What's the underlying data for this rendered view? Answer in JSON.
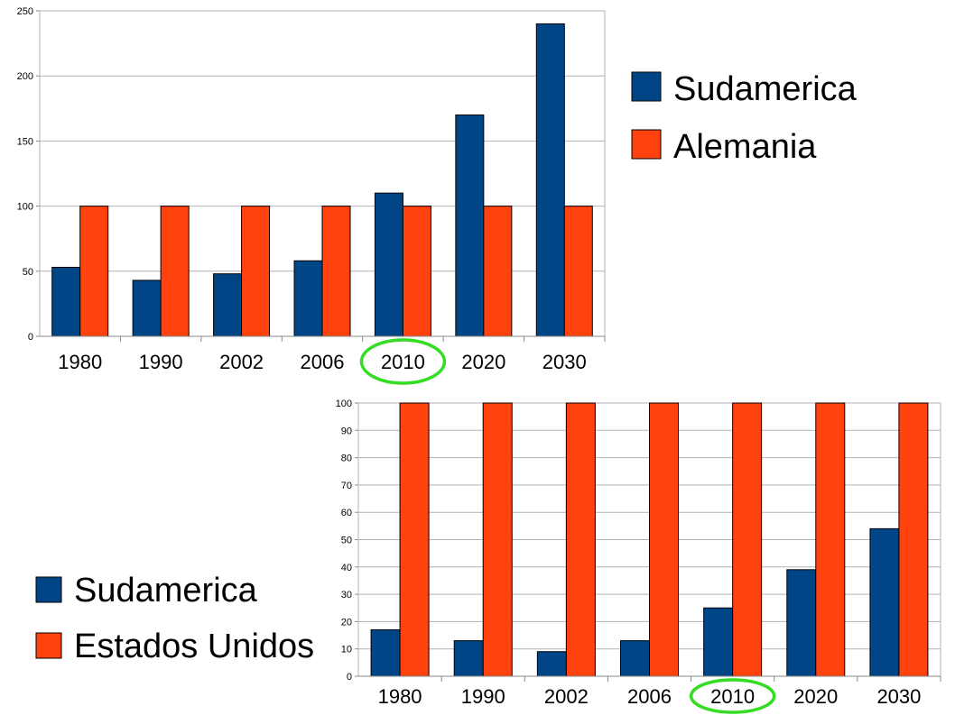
{
  "chart_data": [
    {
      "type": "bar",
      "categories": [
        "1980",
        "1990",
        "2002",
        "2006",
        "2010",
        "2020",
        "2030"
      ],
      "series": [
        {
          "name": "Sudamerica",
          "values": [
            53,
            43,
            48,
            58,
            110,
            170,
            240
          ]
        },
        {
          "name": "Alemania",
          "values": [
            100,
            100,
            100,
            100,
            100,
            100,
            100
          ]
        }
      ],
      "ylim": [
        0,
        250
      ],
      "yticks": [
        "0",
        "50",
        "100",
        "150",
        "200",
        "250"
      ],
      "grid": true,
      "legend": "right",
      "highlighted_category": "2010"
    },
    {
      "type": "bar",
      "categories": [
        "1980",
        "1990",
        "2002",
        "2006",
        "2010",
        "2020",
        "2030"
      ],
      "series": [
        {
          "name": "Sudamerica",
          "values": [
            17,
            13,
            9,
            13,
            25,
            39,
            54
          ]
        },
        {
          "name": "Estados Unidos",
          "values": [
            100,
            100,
            100,
            100,
            100,
            100,
            100
          ]
        }
      ],
      "ylim": [
        0,
        100
      ],
      "yticks": [
        "0",
        "10",
        "20",
        "30",
        "40",
        "50",
        "60",
        "70",
        "80",
        "90",
        "100"
      ],
      "grid": true,
      "legend": "left",
      "highlighted_category": "2010"
    }
  ],
  "colors": {
    "series1": "#004586",
    "series2": "#ff420e",
    "highlight": "#33dd22",
    "grid": "#b3b3b3"
  }
}
